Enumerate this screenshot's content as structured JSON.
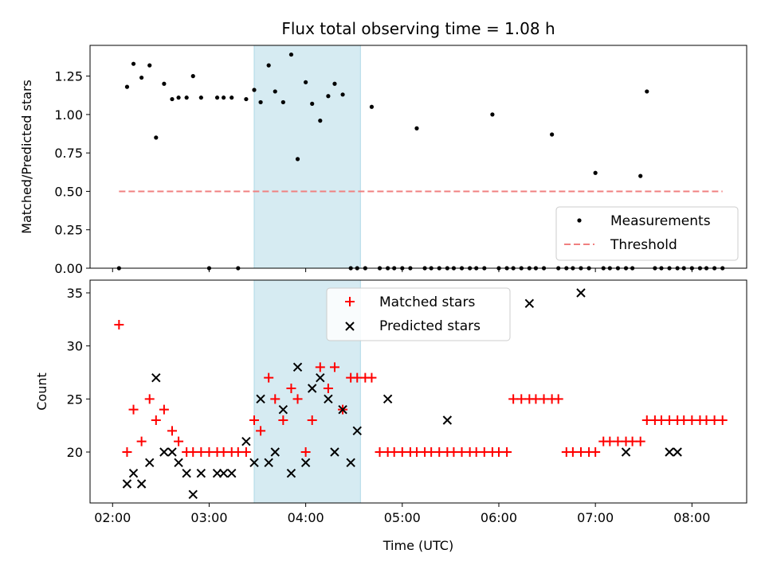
{
  "chart_data": [
    {
      "panel": "top",
      "type": "scatter",
      "title": "Flux total observing time = 1.08 h",
      "xlabel": "",
      "ylabel": "Matched/Predicted stars",
      "xlim": [
        "01:46",
        "08:34"
      ],
      "ylim": [
        0,
        1.45
      ],
      "yticks": [
        0.0,
        0.25,
        0.5,
        0.75,
        1.0,
        1.25
      ],
      "ytick_labels": [
        "0.00",
        "0.25",
        "0.50",
        "0.75",
        "1.00",
        "1.25"
      ],
      "legend_position": "lower-right",
      "highlight_span": [
        "03:28",
        "04:34"
      ],
      "colors": {
        "measurements": "#000000",
        "threshold": "#f08080",
        "highlight": "#add8e6"
      },
      "series": [
        {
          "name": "Measurements",
          "kind": "scatter",
          "x": [
            "02:04",
            "02:09",
            "02:13",
            "02:18",
            "02:23",
            "02:27",
            "02:32",
            "02:37",
            "02:41",
            "02:46",
            "02:50",
            "02:55",
            "03:00",
            "03:05",
            "03:09",
            "03:14",
            "03:18",
            "03:23",
            "03:28",
            "03:32",
            "03:37",
            "03:41",
            "03:46",
            "03:51",
            "03:55",
            "04:00",
            "04:04",
            "04:09",
            "04:14",
            "04:18",
            "04:23",
            "04:28",
            "04:32",
            "04:37",
            "04:41",
            "04:46",
            "04:51",
            "04:55",
            "05:00",
            "05:05",
            "05:09",
            "05:14",
            "05:18",
            "05:23",
            "05:28",
            "05:32",
            "05:37",
            "05:42",
            "05:46",
            "05:51",
            "05:56",
            "06:00",
            "06:05",
            "06:09",
            "06:14",
            "06:19",
            "06:23",
            "06:28",
            "06:33",
            "06:37",
            "06:42",
            "06:46",
            "06:51",
            "06:56",
            "07:00",
            "07:05",
            "07:09",
            "07:14",
            "07:19",
            "07:23",
            "07:28",
            "07:32",
            "07:37",
            "07:41",
            "07:46",
            "07:51",
            "07:55",
            "08:00",
            "08:05",
            "08:09",
            "08:14",
            "08:19"
          ],
          "y": [
            0.0,
            1.18,
            1.33,
            1.24,
            1.32,
            0.85,
            1.2,
            1.1,
            1.11,
            1.11,
            1.25,
            1.11,
            0.0,
            1.11,
            1.11,
            1.11,
            0.0,
            1.1,
            1.16,
            1.08,
            1.32,
            1.15,
            1.08,
            1.39,
            0.71,
            1.21,
            1.07,
            0.96,
            1.12,
            1.2,
            1.13,
            0.0,
            0.0,
            0.0,
            1.05,
            0.0,
            0.0,
            0.0,
            0.0,
            0.0,
            0.91,
            0.0,
            0.0,
            0.0,
            0.0,
            0.0,
            0.0,
            0.0,
            0.0,
            0.0,
            1.0,
            0.0,
            0.0,
            0.0,
            0.0,
            0.0,
            0.0,
            0.0,
            0.87,
            0.0,
            0.0,
            0.0,
            0.0,
            0.0,
            0.62,
            0.0,
            0.0,
            0.0,
            0.0,
            0.0,
            0.6,
            1.15,
            0.0,
            0.0,
            0.0,
            0.0,
            0.0,
            0.0,
            0.0,
            0.0,
            0.0,
            0.0
          ]
        },
        {
          "name": "Threshold",
          "kind": "line",
          "style": "dashed",
          "x": [
            "02:04",
            "08:19"
          ],
          "y": [
            0.5,
            0.5
          ]
        }
      ]
    },
    {
      "panel": "bottom",
      "type": "scatter",
      "title": "",
      "xlabel": "Time (UTC)",
      "ylabel": "Count",
      "xlim": [
        "01:46",
        "08:34"
      ],
      "ylim": [
        15.2,
        36.2
      ],
      "xticks": [
        "02:00",
        "03:00",
        "04:00",
        "05:00",
        "06:00",
        "07:00",
        "08:00"
      ],
      "yticks": [
        20,
        25,
        30,
        35
      ],
      "legend_position": "upper-center",
      "highlight_span": [
        "03:28",
        "04:34"
      ],
      "colors": {
        "matched": "#ff0000",
        "predicted": "#000000"
      },
      "series": [
        {
          "name": "Matched stars",
          "marker": "plus",
          "x": [
            "02:04",
            "02:09",
            "02:13",
            "02:18",
            "02:23",
            "02:27",
            "02:32",
            "02:37",
            "02:41",
            "02:46",
            "02:50",
            "02:55",
            "03:00",
            "03:05",
            "03:09",
            "03:14",
            "03:18",
            "03:23",
            "03:28",
            "03:32",
            "03:37",
            "03:41",
            "03:46",
            "03:51",
            "03:55",
            "04:00",
            "04:04",
            "04:09",
            "04:14",
            "04:18",
            "04:23",
            "04:28",
            "04:32",
            "04:37",
            "04:41",
            "04:46",
            "04:51",
            "04:55",
            "05:00",
            "05:05",
            "05:09",
            "05:14",
            "05:18",
            "05:23",
            "05:28",
            "05:32",
            "05:37",
            "05:42",
            "05:46",
            "05:51",
            "05:56",
            "06:00",
            "06:05",
            "06:09",
            "06:14",
            "06:19",
            "06:23",
            "06:28",
            "06:33",
            "06:37",
            "06:42",
            "06:46",
            "06:51",
            "06:56",
            "07:00",
            "07:05",
            "07:09",
            "07:14",
            "07:19",
            "07:23",
            "07:28",
            "07:32",
            "07:37",
            "07:41",
            "07:46",
            "07:51",
            "07:55",
            "08:00",
            "08:05",
            "08:09",
            "08:14",
            "08:19"
          ],
          "y": [
            32,
            20,
            24,
            21,
            25,
            23,
            24,
            22,
            21,
            20,
            20,
            20,
            20,
            20,
            20,
            20,
            20,
            20,
            23,
            22,
            27,
            25,
            23,
            26,
            25,
            20,
            23,
            28,
            26,
            28,
            24,
            27,
            27,
            27,
            27,
            20,
            20,
            20,
            20,
            20,
            20,
            20,
            20,
            20,
            20,
            20,
            20,
            20,
            20,
            20,
            20,
            20,
            20,
            25,
            25,
            25,
            25,
            25,
            25,
            25,
            20,
            20,
            20,
            20,
            20,
            21,
            21,
            21,
            21,
            21,
            21,
            23,
            23,
            23,
            23,
            23,
            23,
            23,
            23,
            23,
            23,
            23
          ]
        },
        {
          "name": "Predicted stars",
          "marker": "x",
          "x": [
            "02:09",
            "02:13",
            "02:18",
            "02:23",
            "02:27",
            "02:32",
            "02:37",
            "02:41",
            "02:46",
            "02:50",
            "02:55",
            "03:05",
            "03:09",
            "03:14",
            "03:23",
            "03:28",
            "03:32",
            "03:37",
            "03:41",
            "03:46",
            "03:51",
            "03:55",
            "04:00",
            "04:04",
            "04:09",
            "04:14",
            "04:18",
            "04:23",
            "04:28",
            "04:32",
            "04:51",
            "05:28",
            "06:19",
            "06:51",
            "07:19",
            "07:46",
            "07:51"
          ],
          "y": [
            17,
            18,
            17,
            19,
            27,
            20,
            20,
            19,
            18,
            16,
            18,
            18,
            18,
            18,
            21,
            19,
            25,
            19,
            20,
            24,
            18,
            28,
            19,
            26,
            27,
            25,
            20,
            24,
            19,
            22,
            25,
            23,
            34,
            35,
            20,
            20,
            20
          ]
        }
      ]
    }
  ]
}
